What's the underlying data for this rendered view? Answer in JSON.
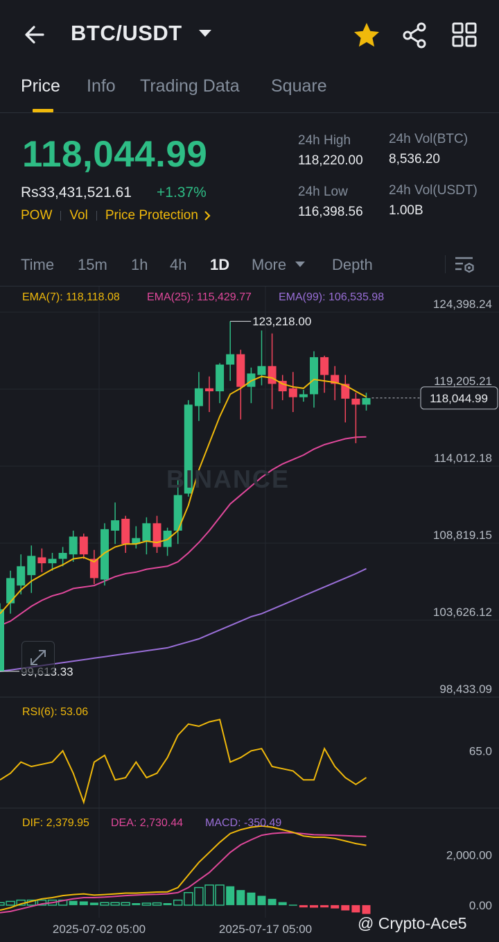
{
  "header": {
    "back_icon": "arrow-left-icon",
    "pair": "BTC/USDT",
    "favorite_icon": "star-icon",
    "share_icon": "share-icon",
    "menu_icon": "grid-icon",
    "colors": {
      "accent": "#f0b90b",
      "up": "#2ebd85",
      "down": "#f6465d",
      "bg": "#181a20"
    }
  },
  "tabs": [
    {
      "label": "Price",
      "active": true
    },
    {
      "label": "Info",
      "active": false
    },
    {
      "label": "Trading Data",
      "active": false
    },
    {
      "label": "Square",
      "active": false
    }
  ],
  "ticker": {
    "last_price": "118,044.99",
    "fiat_price": "Rs33,431,521.61",
    "change": "+1.37%",
    "tags": [
      "POW",
      "Vol",
      "Price Protection"
    ],
    "stats": {
      "high_label": "24h High",
      "high": "118,220.00",
      "low_label": "24h Low",
      "low": "116,398.56",
      "vol_btc_label": "24h Vol(BTC)",
      "vol_btc": "8,536.20",
      "vol_usdt_label": "24h Vol(USDT)",
      "vol_usdt": "1.00B"
    }
  },
  "intervals": {
    "items": [
      "Time",
      "15m",
      "1h",
      "4h",
      "1D",
      "More",
      "Depth"
    ],
    "selected": "1D",
    "settings_icon": "chart-settings-icon"
  },
  "chart_legend": {
    "ema7": "EMA(7): 118,118.08",
    "ema25": "EMA(25): 115,429.77",
    "ema99": "EMA(99): 106,535.98",
    "rsi": "RSI(6): 53.06",
    "dif": "DIF: 2,379.95",
    "dea": "DEA: 2,730.44",
    "macd": "MACD: -350.49",
    "high_marker": "123,218.00",
    "low_marker": "99,613.33",
    "current_price_tag": "118,044.99",
    "watermark": "BINANCE",
    "expand_icon": "expand-icon"
  },
  "chart_data": {
    "type": "candlestick",
    "price_axis_labels": [
      "124,398.24",
      "119,205.21",
      "114,012.18",
      "108,819.15",
      "103,626.12",
      "98,433.09"
    ],
    "rsi_axis_labels": [
      "65.0"
    ],
    "macd_axis_labels": [
      "2,000.00",
      "0.00"
    ],
    "date_labels": [
      "2025-07-02 05:00",
      "2025-07-17 05:00"
    ],
    "ylim": [
      98433.09,
      124398.24
    ],
    "candles": [
      {
        "o": 99600,
        "h": 104200,
        "l": 99613.33,
        "c": 103800
      },
      {
        "o": 104200,
        "h": 106400,
        "l": 103500,
        "c": 105900
      },
      {
        "o": 105400,
        "h": 107500,
        "l": 104800,
        "c": 106700
      },
      {
        "o": 106100,
        "h": 108100,
        "l": 104900,
        "c": 107400
      },
      {
        "o": 107300,
        "h": 107900,
        "l": 106300,
        "c": 106900
      },
      {
        "o": 106900,
        "h": 107600,
        "l": 106400,
        "c": 107200
      },
      {
        "o": 107200,
        "h": 108000,
        "l": 106700,
        "c": 107600
      },
      {
        "o": 107500,
        "h": 109100,
        "l": 107000,
        "c": 108700
      },
      {
        "o": 108700,
        "h": 108900,
        "l": 107200,
        "c": 107500
      },
      {
        "o": 107200,
        "h": 107800,
        "l": 105500,
        "c": 105900
      },
      {
        "o": 105800,
        "h": 109600,
        "l": 105400,
        "c": 109200
      },
      {
        "o": 109100,
        "h": 111000,
        "l": 108200,
        "c": 109800
      },
      {
        "o": 109900,
        "h": 110100,
        "l": 107600,
        "c": 108200
      },
      {
        "o": 108200,
        "h": 109400,
        "l": 107900,
        "c": 108600
      },
      {
        "o": 108400,
        "h": 110000,
        "l": 107500,
        "c": 109600
      },
      {
        "o": 109600,
        "h": 110100,
        "l": 107600,
        "c": 108000
      },
      {
        "o": 108000,
        "h": 109300,
        "l": 107400,
        "c": 109100
      },
      {
        "o": 109100,
        "h": 112500,
        "l": 108200,
        "c": 111500
      },
      {
        "o": 111600,
        "h": 117900,
        "l": 111400,
        "c": 117600
      },
      {
        "o": 117500,
        "h": 119800,
        "l": 116500,
        "c": 118700
      },
      {
        "o": 118700,
        "h": 119500,
        "l": 117100,
        "c": 118500
      },
      {
        "o": 118500,
        "h": 120400,
        "l": 117700,
        "c": 120300
      },
      {
        "o": 120300,
        "h": 123218.0,
        "l": 119200,
        "c": 121000
      },
      {
        "o": 121000,
        "h": 121300,
        "l": 116600,
        "c": 118800
      },
      {
        "o": 118800,
        "h": 120100,
        "l": 117700,
        "c": 119700
      },
      {
        "o": 119600,
        "h": 122600,
        "l": 118900,
        "c": 120200
      },
      {
        "o": 120200,
        "h": 122400,
        "l": 117300,
        "c": 119000
      },
      {
        "o": 119200,
        "h": 119600,
        "l": 117900,
        "c": 118500
      },
      {
        "o": 118700,
        "h": 119800,
        "l": 117100,
        "c": 118100
      },
      {
        "o": 118100,
        "h": 118600,
        "l": 117800,
        "c": 118300
      },
      {
        "o": 118300,
        "h": 121200,
        "l": 117400,
        "c": 120800
      },
      {
        "o": 120800,
        "h": 120900,
        "l": 118400,
        "c": 119600
      },
      {
        "o": 119600,
        "h": 120200,
        "l": 117900,
        "c": 119000
      },
      {
        "o": 119000,
        "h": 119600,
        "l": 116400,
        "c": 118000
      },
      {
        "o": 118000,
        "h": 118400,
        "l": 115000,
        "c": 117600
      },
      {
        "o": 117600,
        "h": 118400,
        "l": 117200,
        "c": 118045
      }
    ],
    "ema7": [
      103500,
      104300,
      105100,
      105700,
      106100,
      106500,
      106800,
      107200,
      107300,
      107000,
      107600,
      108000,
      108200,
      108200,
      108400,
      108300,
      108500,
      109100,
      110800,
      113200,
      115000,
      116800,
      118300,
      118700,
      119200,
      119500,
      119400,
      119000,
      118800,
      118700,
      119300,
      119200,
      119100,
      118900,
      118500,
      118118.08
    ],
    "ema25": [
      102700,
      103000,
      103500,
      104000,
      104400,
      104700,
      104900,
      105200,
      105300,
      105400,
      105700,
      106000,
      106200,
      106300,
      106500,
      106600,
      106700,
      107000,
      107600,
      108300,
      109100,
      110000,
      110900,
      111500,
      112100,
      112700,
      113200,
      113600,
      113900,
      114200,
      114600,
      114900,
      115100,
      115300,
      115400,
      115429.77
    ],
    "ema99": [
      99613.33,
      99700,
      99800,
      99900,
      100000,
      100100,
      100200,
      100300,
      100400,
      100500,
      100600,
      100700,
      100800,
      100900,
      101000,
      101100,
      101200,
      101400,
      101600,
      101800,
      102100,
      102400,
      102700,
      103000,
      103300,
      103500,
      103800,
      104100,
      104400,
      104700,
      105000,
      105300,
      105600,
      105900,
      106200,
      106535.98
    ],
    "rsi6": [
      52,
      55,
      60,
      58,
      59,
      60,
      65,
      55,
      42,
      60,
      63,
      52,
      53,
      60,
      53,
      55,
      62,
      72,
      77,
      76,
      78,
      79,
      60,
      62,
      65,
      66,
      58,
      57,
      56,
      52,
      52,
      66,
      58,
      53,
      50,
      53.06
    ],
    "rsi_ylim": [
      40,
      85
    ],
    "dif": [
      -200,
      -100,
      50,
      150,
      250,
      300,
      380,
      420,
      450,
      400,
      420,
      450,
      480,
      480,
      500,
      520,
      530,
      700,
      1200,
      1700,
      2100,
      2500,
      2850,
      3000,
      3100,
      3150,
      3100,
      3000,
      2900,
      2750,
      2700,
      2700,
      2650,
      2550,
      2450,
      2379.95
    ],
    "dea": [
      -300,
      -250,
      -150,
      -50,
      50,
      100,
      180,
      250,
      300,
      300,
      320,
      350,
      380,
      400,
      420,
      430,
      450,
      500,
      700,
      1000,
      1300,
      1700,
      2100,
      2400,
      2600,
      2780,
      2850,
      2880,
      2880,
      2840,
      2800,
      2790,
      2780,
      2760,
      2740,
      2730.44
    ],
    "macd_hist": [
      100,
      150,
      200,
      200,
      200,
      200,
      200,
      170,
      150,
      100,
      100,
      100,
      100,
      80,
      80,
      90,
      80,
      200,
      500,
      700,
      800,
      800,
      750,
      600,
      500,
      370,
      250,
      120,
      20,
      -90,
      -100,
      -90,
      -130,
      -210,
      -290,
      -350.49
    ],
    "macd_ylim": [
      -500,
      3500
    ]
  },
  "footer": {
    "credit": "@ Crypto-Ace5"
  }
}
